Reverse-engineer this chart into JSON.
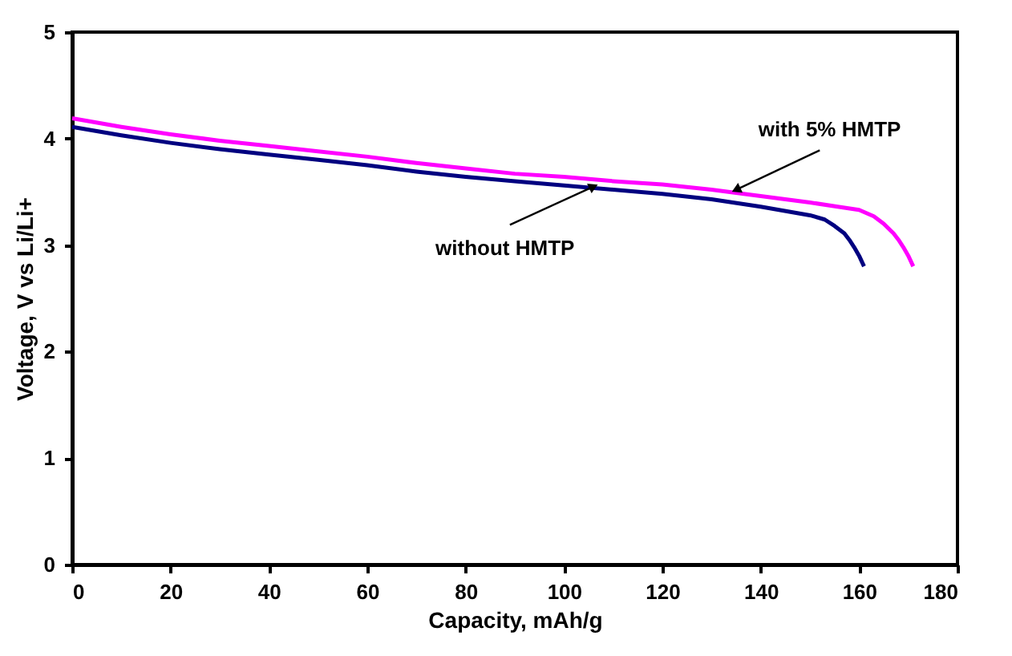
{
  "chart_data": {
    "type": "line",
    "xlabel": "Capacity, mAh/g",
    "ylabel": "Voltage, V vs Li/Li+",
    "xlim": [
      0,
      180
    ],
    "xticks": [
      0,
      20,
      40,
      60,
      80,
      100,
      120,
      140,
      160,
      180
    ],
    "ylim": [
      0,
      5
    ],
    "yticks": [
      0,
      1,
      2,
      3,
      4,
      5
    ],
    "grid": false,
    "marker": "none",
    "line_style": "solid",
    "series": [
      {
        "color": "#000080",
        "x": [
          0,
          10,
          20,
          30,
          40,
          50,
          60,
          70,
          80,
          90,
          100,
          110,
          120,
          130,
          140,
          150,
          153,
          155,
          157,
          158,
          159,
          160,
          161
        ],
        "values": [
          4.11,
          4.03,
          3.96,
          3.9,
          3.85,
          3.8,
          3.75,
          3.69,
          3.64,
          3.6,
          3.56,
          3.52,
          3.48,
          3.43,
          3.36,
          3.28,
          3.24,
          3.18,
          3.11,
          3.05,
          2.98,
          2.9,
          2.8
        ]
      },
      {
        "color": "#ff00ff",
        "x": [
          0,
          10,
          20,
          30,
          40,
          50,
          60,
          70,
          80,
          90,
          100,
          110,
          120,
          130,
          140,
          150,
          160,
          163,
          165,
          167,
          168,
          169,
          170,
          171
        ],
        "values": [
          4.19,
          4.11,
          4.04,
          3.98,
          3.93,
          3.88,
          3.83,
          3.77,
          3.72,
          3.67,
          3.64,
          3.6,
          3.57,
          3.52,
          3.46,
          3.4,
          3.33,
          3.27,
          3.2,
          3.11,
          3.05,
          2.98,
          2.9,
          2.8
        ]
      }
    ],
    "annotations": [
      {
        "text": "with 5% HMTP",
        "x": 135,
        "y": 3.52
      },
      {
        "text": "without HMTP",
        "x": 106,
        "y": 3.55
      }
    ]
  }
}
